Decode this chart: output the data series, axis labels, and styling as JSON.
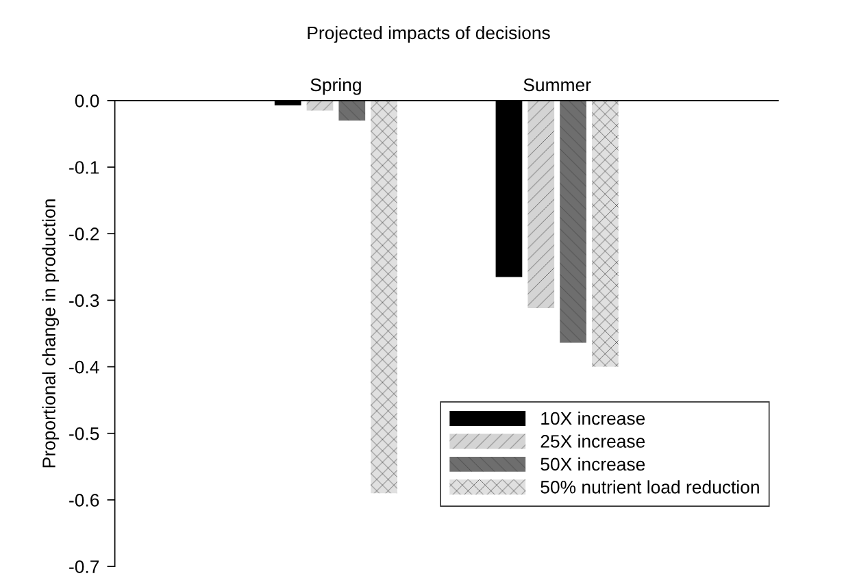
{
  "chart_data": {
    "type": "bar",
    "title": "Projected impacts of decisions",
    "ylabel": "Proportional change in production",
    "categories": [
      "Spring",
      "Summer"
    ],
    "series": [
      {
        "name": "10X increase",
        "color": "#000000",
        "values": [
          -0.007,
          -0.265
        ]
      },
      {
        "name": "25X increase",
        "color": "#d4d4d4",
        "values": [
          -0.015,
          -0.312
        ]
      },
      {
        "name": "50X increase",
        "color": "#6e6e6e",
        "values": [
          -0.03,
          -0.364
        ]
      },
      {
        "name": "50% nutrient load reduction",
        "color": "#e0e0e0",
        "values": [
          -0.59,
          -0.4
        ]
      }
    ],
    "ylim": [
      -0.7,
      0.0
    ],
    "yticks": [
      {
        "value": 0.0,
        "label": "0.0"
      },
      -0.1,
      -0.2,
      -0.3,
      -0.4,
      -0.5,
      -0.6,
      -0.7
    ],
    "grid": false,
    "legend": "bottom right"
  }
}
